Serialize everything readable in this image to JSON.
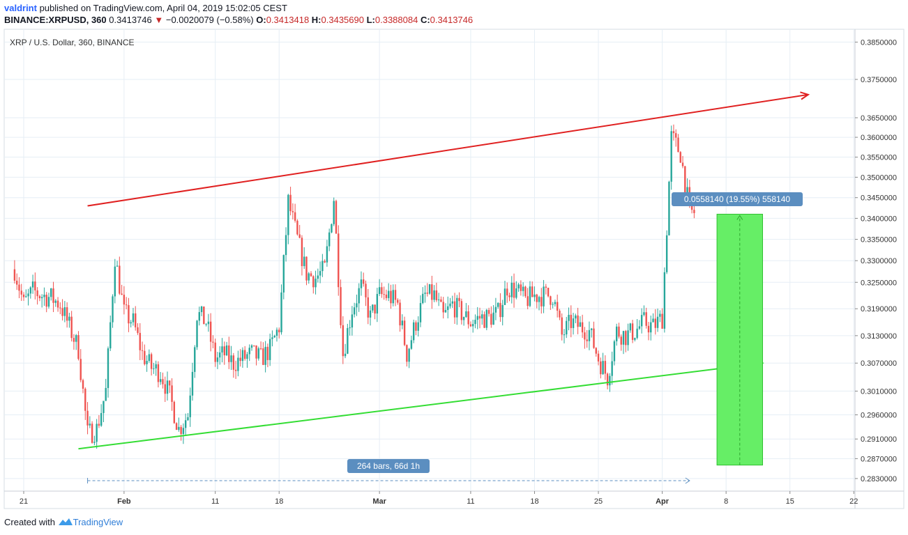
{
  "header": {
    "author": "valdrint",
    "published_text": " published on TradingView.com, April 04, 2019 15:02:05 CEST",
    "symbol": "BINANCE:XRPUSD, 360",
    "last_price": "0.3413746",
    "change_arrow": "▼",
    "change": "−0.0020079 (−0.58%)",
    "o_label": "O:",
    "o_value": "0.3413418",
    "h_label": "H:",
    "h_value": "0.3435690",
    "l_label": "L:",
    "l_value": "0.3388084",
    "c_label": "C:",
    "c_value": "0.3413746"
  },
  "footer": {
    "created_with": "Created with",
    "brand": "TradingView"
  },
  "colors": {
    "up": "#26a69a",
    "down": "#ef5350",
    "resistance": "#e02020",
    "support": "#33dd33",
    "projection_fill": "#66ee66",
    "label_bg": "#5b8ec0",
    "grid": "#e6eef5"
  },
  "chart_data": {
    "type": "candlestick",
    "title": "XRP / U.S. Dollar, 360, BINANCE",
    "scale": "log",
    "ylim": [
      0.2805,
      0.3885
    ],
    "y_ticks": [
      "0.3850000",
      "0.3750000",
      "0.3650000",
      "0.3600000",
      "0.3550000",
      "0.3500000",
      "0.3450000",
      "0.3400000",
      "0.3350000",
      "0.3300000",
      "0.3250000",
      "0.3190000",
      "0.3130000",
      "0.3070000",
      "0.3010000",
      "0.2960000",
      "0.2910000",
      "0.2870000",
      "0.2830000"
    ],
    "x_ticks": [
      {
        "label": "21",
        "date": "2019-01-21",
        "month": false
      },
      {
        "label": "Feb",
        "date": "2019-02-01",
        "month": true
      },
      {
        "label": "11",
        "date": "2019-02-11",
        "month": false
      },
      {
        "label": "18",
        "date": "2019-02-18",
        "month": false
      },
      {
        "label": "Mar",
        "date": "2019-03-01",
        "month": true
      },
      {
        "label": "11",
        "date": "2019-03-11",
        "month": false
      },
      {
        "label": "18",
        "date": "2019-03-18",
        "month": false
      },
      {
        "label": "25",
        "date": "2019-03-25",
        "month": false
      },
      {
        "label": "Apr",
        "date": "2019-04-01",
        "month": true
      },
      {
        "label": "8",
        "date": "2019-04-08",
        "month": false
      },
      {
        "label": "15",
        "date": "2019-04-15",
        "month": false
      },
      {
        "label": "22",
        "date": "2019-04-22",
        "month": false
      }
    ],
    "price_path": [
      [
        "2019-01-20",
        0.328
      ],
      [
        "2019-01-21",
        0.32
      ],
      [
        "2019-01-22",
        0.323
      ],
      [
        "2019-01-23",
        0.322
      ],
      [
        "2019-01-24",
        0.3215
      ],
      [
        "2019-01-25",
        0.32
      ],
      [
        "2019-01-26",
        0.315
      ],
      [
        "2019-01-27",
        0.31
      ],
      [
        "2019-01-28",
        0.292
      ],
      [
        "2019-01-29",
        0.293
      ],
      [
        "2019-01-30",
        0.301
      ],
      [
        "2019-01-31",
        0.331
      ],
      [
        "2019-02-01",
        0.318
      ],
      [
        "2019-02-02",
        0.316
      ],
      [
        "2019-02-03",
        0.309
      ],
      [
        "2019-02-04",
        0.306
      ],
      [
        "2019-02-05",
        0.305
      ],
      [
        "2019-02-06",
        0.3
      ],
      [
        "2019-02-07",
        0.293
      ],
      [
        "2019-02-08",
        0.296
      ],
      [
        "2019-02-09",
        0.318
      ],
      [
        "2019-02-10",
        0.316
      ],
      [
        "2019-02-11",
        0.308
      ],
      [
        "2019-02-12",
        0.309
      ],
      [
        "2019-02-13",
        0.307
      ],
      [
        "2019-02-14",
        0.308
      ],
      [
        "2019-02-15",
        0.309
      ],
      [
        "2019-02-16",
        0.308
      ],
      [
        "2019-02-17",
        0.31
      ],
      [
        "2019-02-18",
        0.315
      ],
      [
        "2019-02-19",
        0.344
      ],
      [
        "2019-02-20",
        0.335
      ],
      [
        "2019-02-21",
        0.327
      ],
      [
        "2019-02-22",
        0.326
      ],
      [
        "2019-02-23",
        0.328
      ],
      [
        "2019-02-24",
        0.345
      ],
      [
        "2019-02-25",
        0.309
      ],
      [
        "2019-02-26",
        0.319
      ],
      [
        "2019-02-27",
        0.324
      ],
      [
        "2019-02-28",
        0.317
      ],
      [
        "2019-03-01",
        0.322
      ],
      [
        "2019-03-02",
        0.322
      ],
      [
        "2019-03-03",
        0.32
      ],
      [
        "2019-03-04",
        0.309
      ],
      [
        "2019-03-05",
        0.316
      ],
      [
        "2019-03-06",
        0.322
      ],
      [
        "2019-03-07",
        0.322
      ],
      [
        "2019-03-08",
        0.317
      ],
      [
        "2019-03-09",
        0.32
      ],
      [
        "2019-03-10",
        0.318
      ],
      [
        "2019-03-11",
        0.316
      ],
      [
        "2019-03-12",
        0.317
      ],
      [
        "2019-03-13",
        0.317
      ],
      [
        "2019-03-14",
        0.318
      ],
      [
        "2019-03-15",
        0.324
      ],
      [
        "2019-03-16",
        0.323
      ],
      [
        "2019-03-17",
        0.321
      ],
      [
        "2019-03-18",
        0.322
      ],
      [
        "2019-03-19",
        0.322
      ],
      [
        "2019-03-20",
        0.322
      ],
      [
        "2019-03-21",
        0.313
      ],
      [
        "2019-03-22",
        0.316
      ],
      [
        "2019-03-23",
        0.315
      ],
      [
        "2019-03-24",
        0.314
      ],
      [
        "2019-03-25",
        0.308
      ],
      [
        "2019-03-26",
        0.304
      ],
      [
        "2019-03-27",
        0.314
      ],
      [
        "2019-03-28",
        0.313
      ],
      [
        "2019-03-29",
        0.314
      ],
      [
        "2019-03-30",
        0.316
      ],
      [
        "2019-03-31",
        0.315
      ],
      [
        "2019-04-01",
        0.317
      ],
      [
        "2019-04-02",
        0.36
      ],
      [
        "2019-04-03",
        0.356
      ],
      [
        "2019-04-04",
        0.3414
      ]
    ],
    "resistance_line": {
      "start": [
        "2019-01-28",
        0.343
      ],
      "end": [
        "2019-04-17",
        0.371
      ],
      "color": "#e02020",
      "arrow": true
    },
    "support_line": {
      "start": [
        "2019-01-27",
        0.289
      ],
      "end": [
        "2019-04-12",
        0.307
      ],
      "color": "#33dd33",
      "arrow": true
    },
    "date_range": {
      "start": "2019-01-28",
      "end": "2019-04-04",
      "label": "264 bars, 66d 1h"
    },
    "projection": {
      "x_start": "2019-04-07",
      "x_end": "2019-04-12",
      "y_top": 0.341,
      "y_bottom": 0.2857,
      "label": "0.0558140 (19.55%) 558140"
    }
  }
}
